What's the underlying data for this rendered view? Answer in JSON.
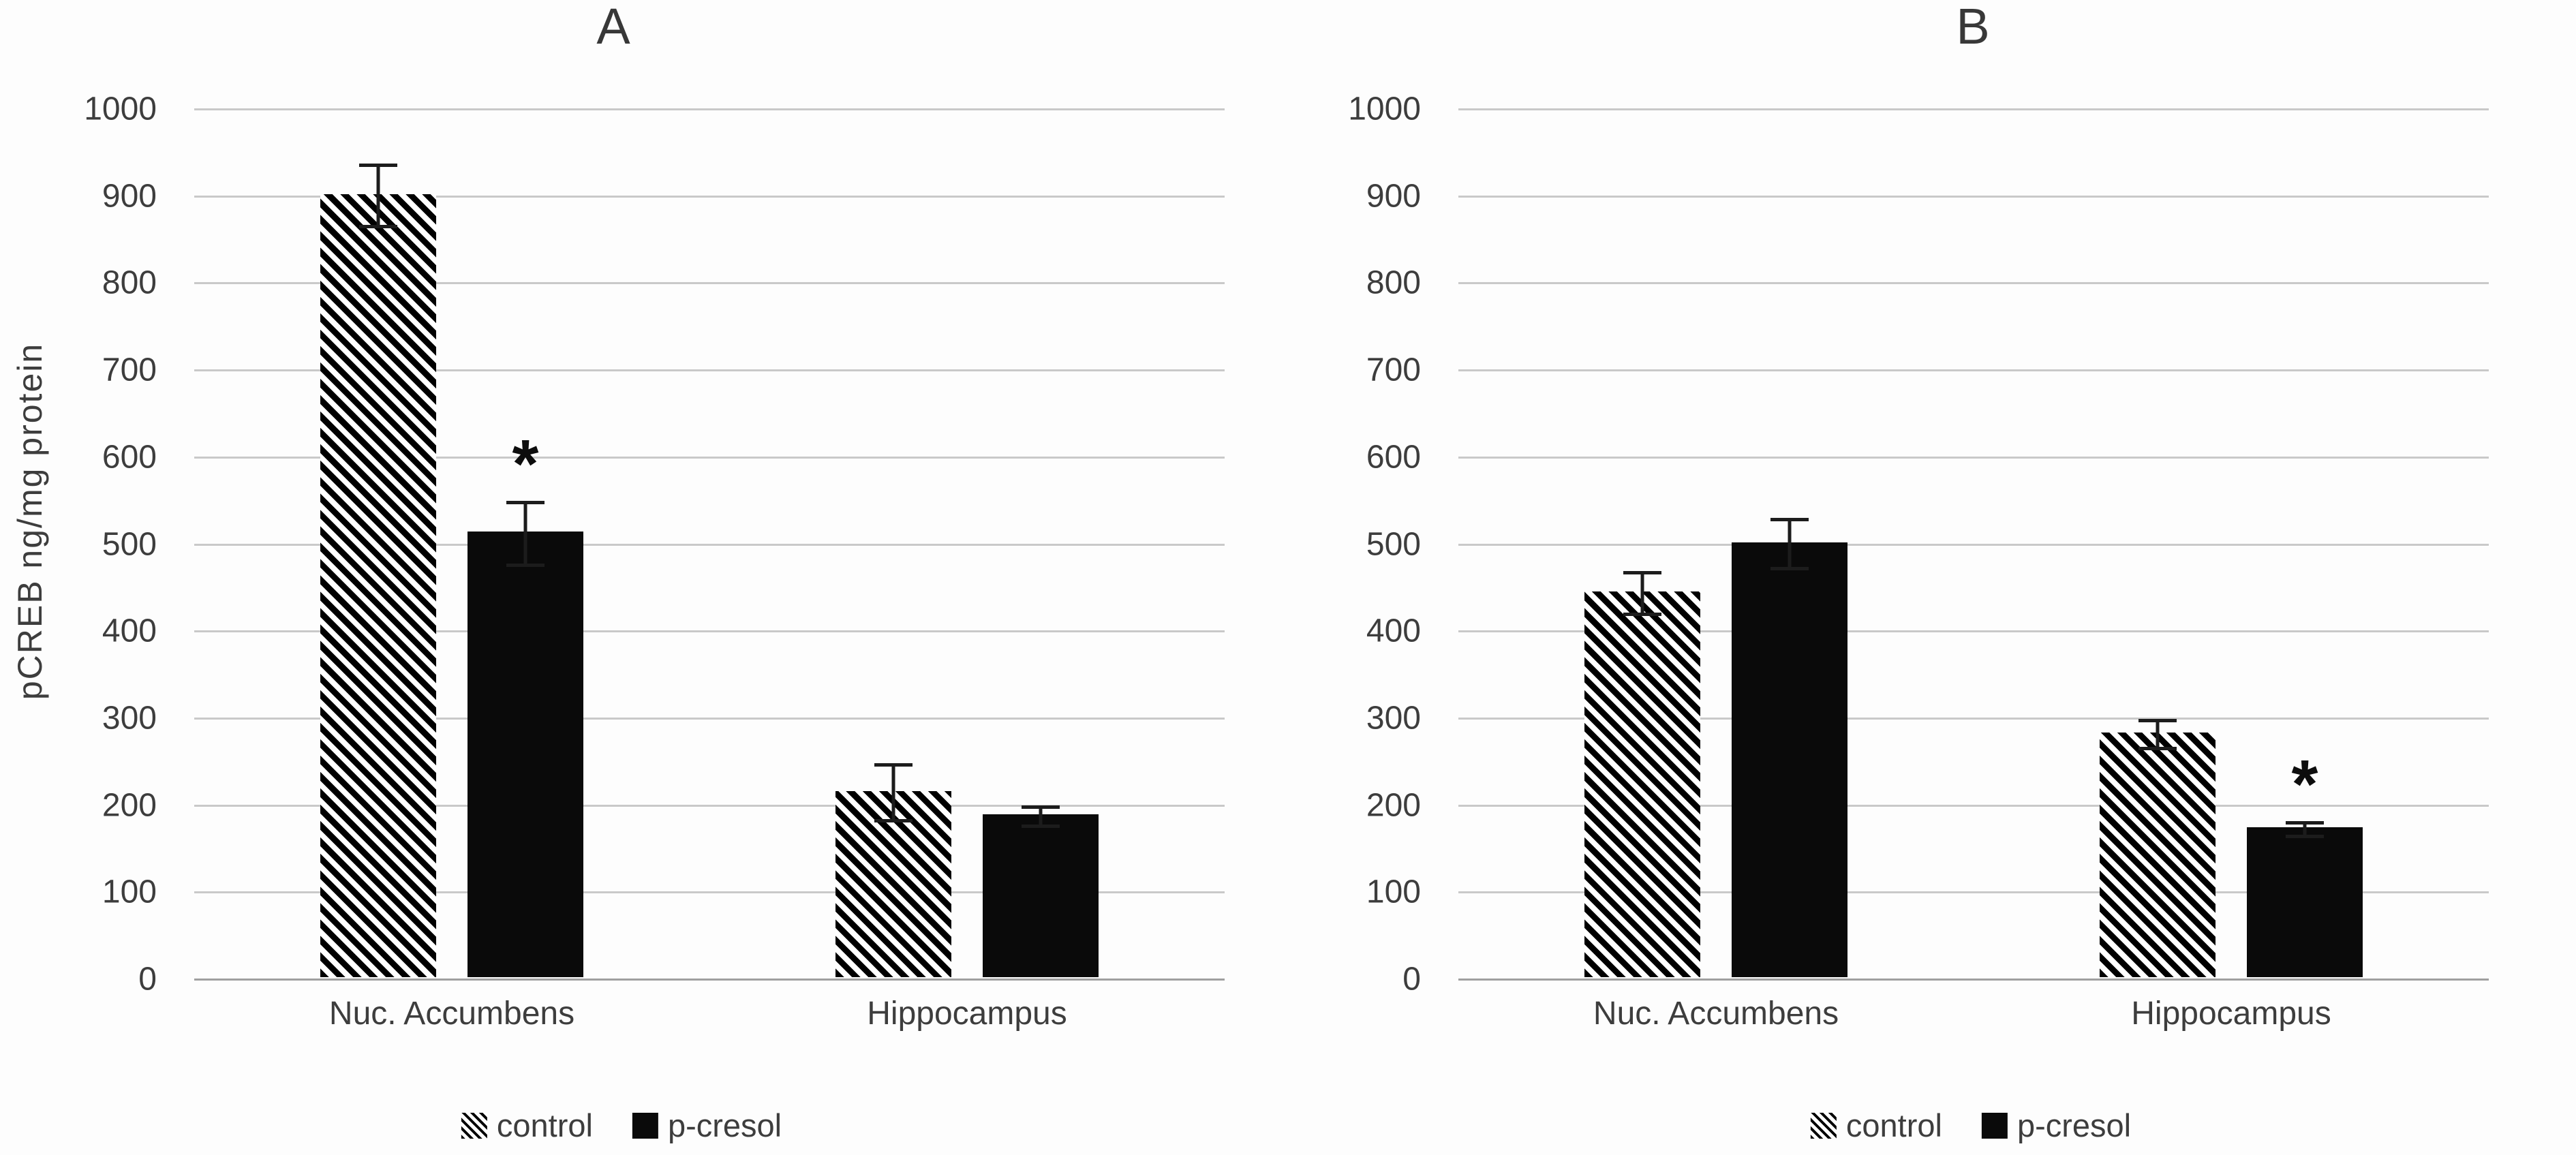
{
  "chart_data": {
    "type": "bar",
    "title": "",
    "y_axis": {
      "label": "pCREB ng/mg protein",
      "min": 0,
      "max": 1000,
      "step": 100
    },
    "categories": [
      "Nuc. Accumbens",
      "Hippocampus"
    ],
    "legend": [
      "control",
      "p-cresol"
    ],
    "grid": true,
    "legend_position": "bottom",
    "panels": [
      {
        "label": "A",
        "series": [
          {
            "name": "control",
            "style": "hatched",
            "values": [
              900,
              214
            ],
            "errors": [
              37,
              34
            ]
          },
          {
            "name": "p-cresol",
            "style": "solid",
            "values": [
              512,
              187
            ],
            "errors": [
              38,
              13
            ]
          }
        ],
        "significance": [
          {
            "series_index": 1,
            "category_index": 0,
            "marker": "*"
          }
        ]
      },
      {
        "label": "B",
        "series": [
          {
            "name": "control",
            "style": "hatched",
            "values": [
              443,
              281
            ],
            "errors": [
              26,
              18
            ]
          },
          {
            "name": "p-cresol",
            "style": "solid",
            "values": [
              500,
              172
            ],
            "errors": [
              30,
              10
            ]
          }
        ],
        "significance": [
          {
            "series_index": 1,
            "category_index": 1,
            "marker": "*"
          }
        ]
      }
    ]
  },
  "colors": {
    "bar_solid": "#0a0a0a",
    "hatch_stripe": "#000000",
    "text": "#3d3d3d",
    "gridline": "#c9c9c9",
    "axis_line": "#9f9f9f",
    "error_bar": "#1c1c1c"
  }
}
